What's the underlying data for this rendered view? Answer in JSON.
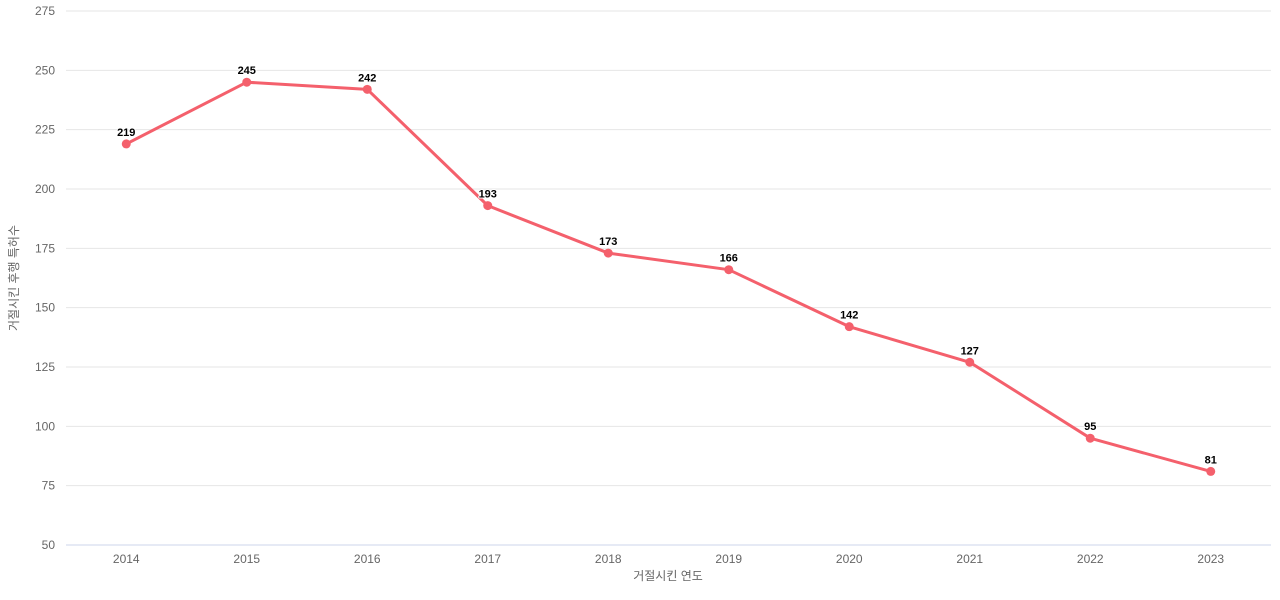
{
  "chart_data": {
    "type": "line",
    "categories": [
      "2014",
      "2015",
      "2016",
      "2017",
      "2018",
      "2019",
      "2020",
      "2021",
      "2022",
      "2023"
    ],
    "series": [
      {
        "name": "거절시킨 후행 특허수",
        "values": [
          219,
          245,
          242,
          193,
          173,
          166,
          142,
          127,
          95,
          81
        ],
        "color": "#f4606c"
      }
    ],
    "data_labels": [
      "219",
      "245",
      "242",
      "193",
      "173",
      "166",
      "142",
      "127",
      "95",
      "81"
    ],
    "title": "",
    "xlabel": "거절시킨 연도",
    "ylabel": "거절시킨 후행 특허수",
    "ylim": [
      50,
      275
    ],
    "ytick_step": 25,
    "ytick_labels": [
      "50",
      "75",
      "100",
      "125",
      "150",
      "175",
      "200",
      "225",
      "250",
      "275"
    ],
    "grid": "on",
    "legend": "none",
    "colors": {
      "series": "#f4606c",
      "gridline": "#e6e6e6",
      "axis_line": "#ccd6eb",
      "tick_label": "#666666",
      "axis_title": "#666666",
      "data_label": "#000000",
      "background": "#ffffff"
    }
  }
}
